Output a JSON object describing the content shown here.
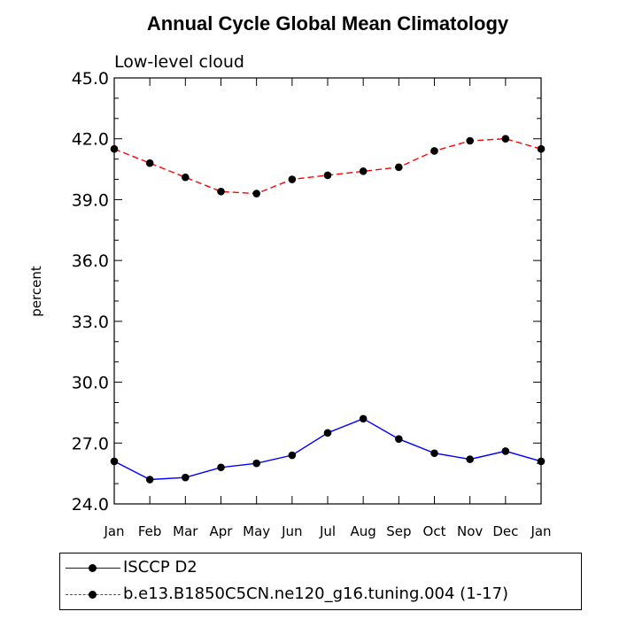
{
  "chart_data": {
    "type": "line",
    "title": "Annual Cycle Global Mean Climatology",
    "subtitle": "Low-level cloud",
    "xlabel": "",
    "ylabel": "percent",
    "categories": [
      "Jan",
      "Feb",
      "Mar",
      "Apr",
      "May",
      "Jun",
      "Jul",
      "Aug",
      "Sep",
      "Oct",
      "Nov",
      "Dec",
      "Jan"
    ],
    "ylim": [
      24.0,
      45.0
    ],
    "yticks": [
      "24.0",
      "27.0",
      "30.0",
      "33.0",
      "36.0",
      "39.0",
      "42.0",
      "45.0"
    ],
    "series": [
      {
        "name": "ISCCP D2",
        "color": "#0000ff",
        "style": "solid",
        "values": [
          26.1,
          25.2,
          25.3,
          25.8,
          26.0,
          26.4,
          27.5,
          28.2,
          27.2,
          26.5,
          26.2,
          26.6,
          26.1
        ]
      },
      {
        "name": "b.e13.B1850C5CN.ne120_g16.tuning.004 (1-17)",
        "color": "#ff0000",
        "style": "dashed",
        "values": [
          41.5,
          40.8,
          40.1,
          39.4,
          39.3,
          40.0,
          40.2,
          40.4,
          40.6,
          41.4,
          41.9,
          42.0,
          41.5
        ]
      }
    ]
  }
}
